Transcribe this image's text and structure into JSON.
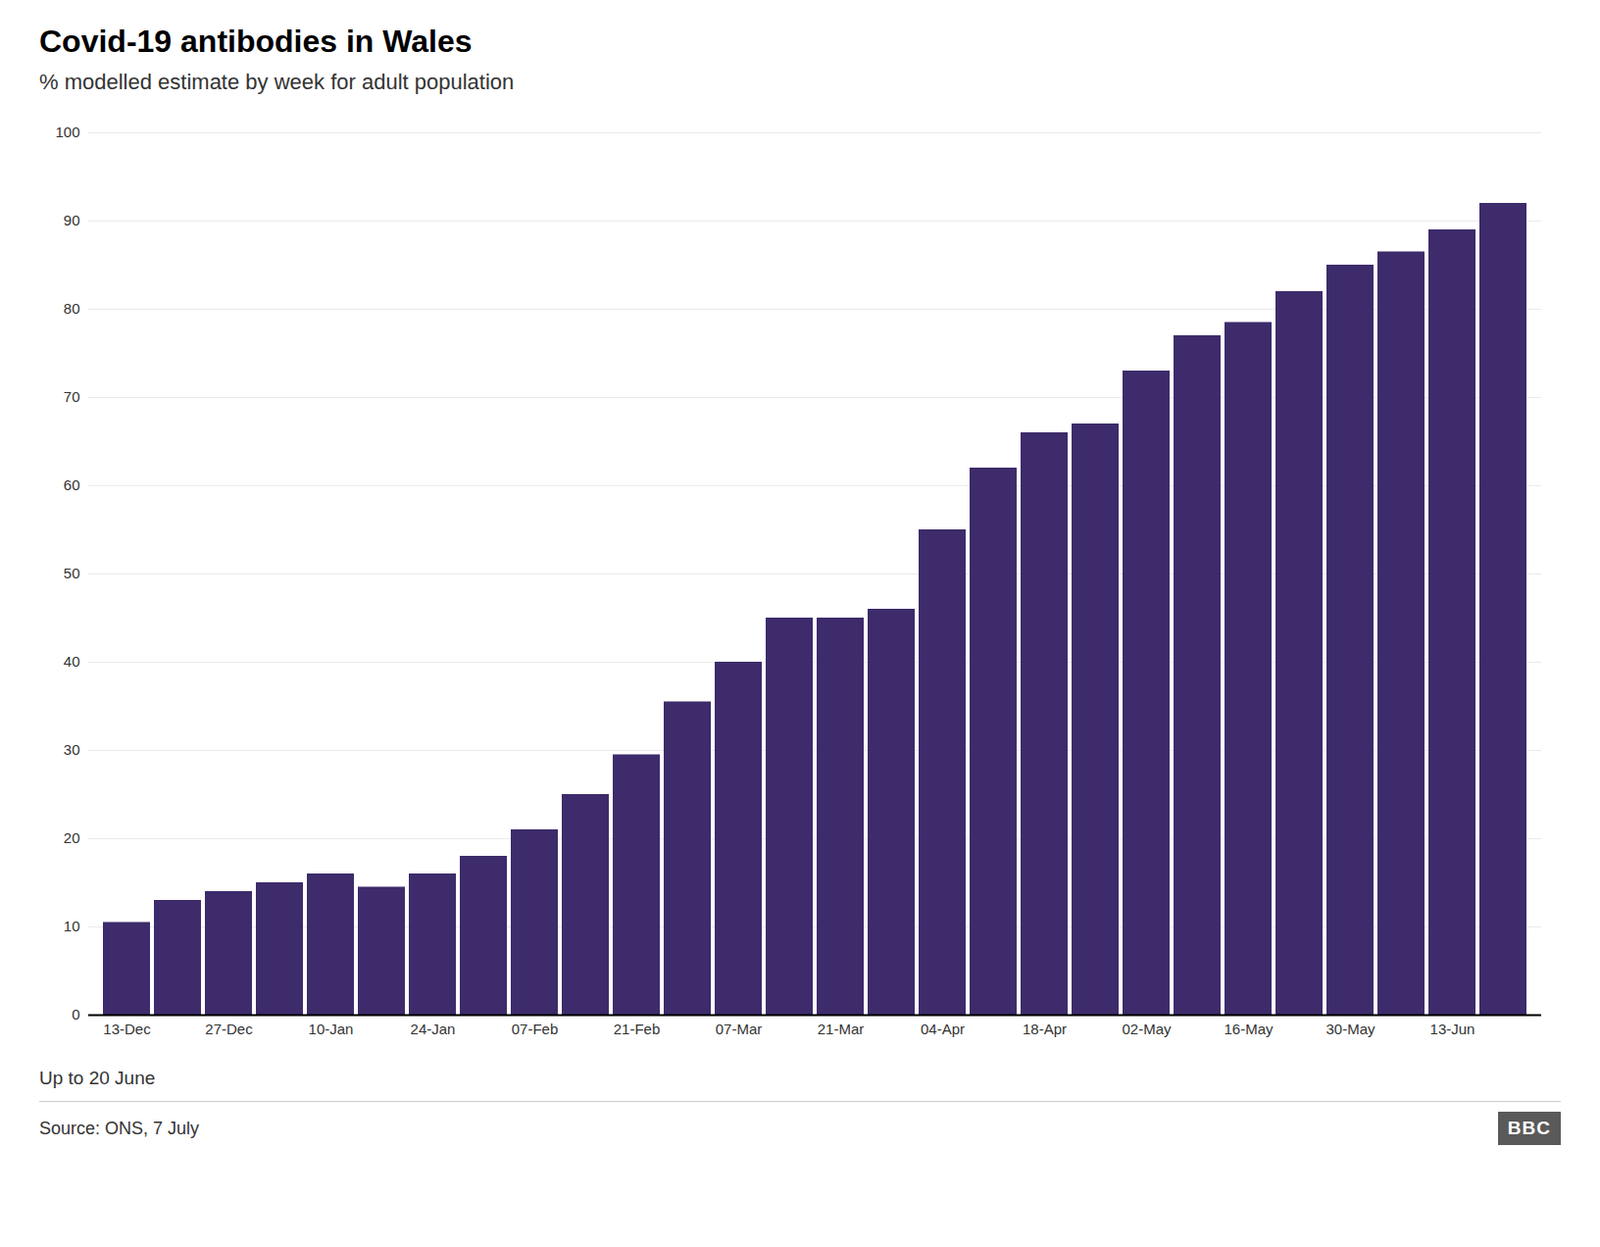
{
  "chart_data": {
    "type": "bar",
    "title": "Covid-19 antibodies in Wales",
    "subtitle": "% modelled estimate by week for adult population",
    "caption": "Up to 20 June",
    "source": "Source: ONS, 7 July",
    "annotations": [
      "BBC"
    ],
    "categories": [
      "13-Dec",
      null,
      "27-Dec",
      null,
      "10-Jan",
      null,
      "24-Jan",
      null,
      "07-Feb",
      null,
      "21-Feb",
      null,
      "07-Mar",
      null,
      "21-Mar",
      null,
      "04-Apr",
      null,
      "18-Apr",
      null,
      "02-May",
      null,
      "16-May",
      null,
      "30-May",
      null,
      "13-Jun",
      null
    ],
    "values": [
      10.5,
      13.0,
      14.0,
      15.0,
      16.0,
      14.5,
      16.0,
      18.0,
      21.0,
      25.0,
      29.5,
      35.5,
      40.0,
      45.0,
      45.0,
      46.0,
      55.0,
      62.0,
      66.0,
      67.0,
      73.0,
      77.0,
      78.5,
      82.0,
      85.0,
      86.5,
      89.0,
      92.0
    ],
    "color": "#3d2b6b",
    "ylim": [
      0,
      100
    ],
    "yticks": [
      0,
      10,
      20,
      30,
      40,
      50,
      60,
      70,
      80,
      90,
      100
    ],
    "grid": true
  }
}
